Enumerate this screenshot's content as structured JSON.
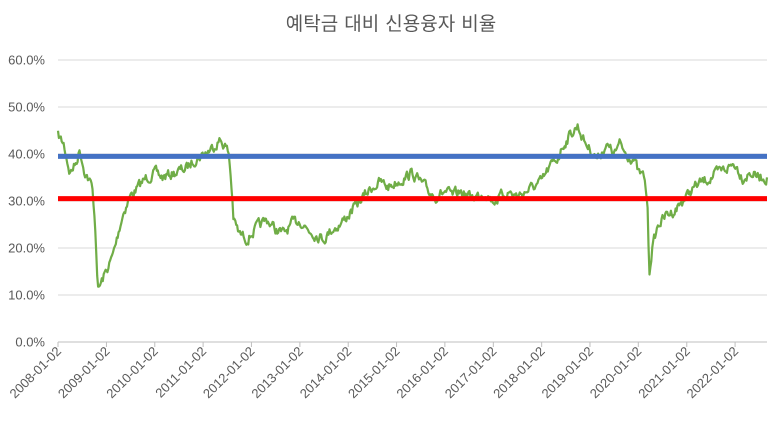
{
  "chart_data": {
    "type": "line",
    "title": "예탁금 대비 신용융자 비율",
    "xlabel": "",
    "ylabel": "",
    "ylim": [
      0,
      0.6
    ],
    "y_ticks": [
      "0.0%",
      "10.0%",
      "20.0%",
      "30.0%",
      "40.0%",
      "50.0%",
      "60.0%"
    ],
    "y_tick_values": [
      0,
      0.1,
      0.2,
      0.3,
      0.4,
      0.5,
      0.6
    ],
    "x_range": [
      "2008-01-02",
      "2022-08-31"
    ],
    "x_ticks": [
      "2008-01-02",
      "2009-01-02",
      "2010-01-02",
      "2011-01-02",
      "2012-01-02",
      "2013-01-02",
      "2014-01-02",
      "2015-01-02",
      "2016-01-02",
      "2017-01-02",
      "2018-01-02",
      "2019-01-02",
      "2020-01-02",
      "2021-01-02",
      "2022-01-02"
    ],
    "grid": true,
    "legend": "none",
    "series": [
      {
        "color": "#70ad47",
        "x": [
          "2008-01-02",
          "2008-02-15",
          "2008-04-01",
          "2008-05-15",
          "2008-06-15",
          "2008-07-15",
          "2008-08-15",
          "2008-09-15",
          "2008-10-01",
          "2008-10-15",
          "2008-10-27",
          "2008-11-15",
          "2008-12-15",
          "2009-01-15",
          "2009-02-15",
          "2009-03-15",
          "2009-04-15",
          "2009-05-15",
          "2009-07-01",
          "2009-09-01",
          "2009-11-01",
          "2010-01-02",
          "2010-03-01",
          "2010-06-01",
          "2010-09-01",
          "2010-11-01",
          "2011-01-02",
          "2011-03-01",
          "2011-05-01",
          "2011-06-15",
          "2011-07-15",
          "2011-08-05",
          "2011-08-20",
          "2011-10-01",
          "2011-12-01",
          "2012-02-01",
          "2012-03-15",
          "2012-05-01",
          "2012-07-01",
          "2012-09-01",
          "2012-11-01",
          "2013-01-02",
          "2013-03-01",
          "2013-05-01",
          "2013-07-01",
          "2013-09-01",
          "2013-11-01",
          "2014-01-02",
          "2014-03-01",
          "2014-05-01",
          "2014-07-01",
          "2014-09-01",
          "2014-11-01",
          "2015-01-02",
          "2015-03-01",
          "2015-05-01",
          "2015-07-01",
          "2015-09-01",
          "2015-11-01",
          "2016-01-02",
          "2016-03-01",
          "2016-05-01",
          "2016-07-01",
          "2016-09-01",
          "2016-11-01",
          "2017-01-02",
          "2017-03-01",
          "2017-05-01",
          "2017-07-01",
          "2017-09-01",
          "2017-11-01",
          "2018-01-02",
          "2018-03-01",
          "2018-05-01",
          "2018-06-15",
          "2018-08-01",
          "2018-10-01",
          "2018-11-15",
          "2019-01-02",
          "2019-03-01",
          "2019-05-01",
          "2019-07-01",
          "2019-08-15",
          "2019-10-01",
          "2019-12-01",
          "2020-01-02",
          "2020-02-15",
          "2020-03-10",
          "2020-03-25",
          "2020-04-15",
          "2020-06-01",
          "2020-08-01",
          "2020-10-01",
          "2020-12-01",
          "2021-01-02",
          "2021-03-01",
          "2021-05-01",
          "2021-07-01",
          "2021-09-01",
          "2021-11-01",
          "2022-01-02",
          "2022-03-01",
          "2022-05-01",
          "2022-07-01",
          "2022-08-31"
        ],
        "y": [
          0.44,
          0.42,
          0.36,
          0.38,
          0.41,
          0.37,
          0.35,
          0.33,
          0.28,
          0.22,
          0.11,
          0.12,
          0.14,
          0.16,
          0.18,
          0.21,
          0.25,
          0.28,
          0.31,
          0.33,
          0.35,
          0.36,
          0.35,
          0.36,
          0.37,
          0.39,
          0.4,
          0.41,
          0.43,
          0.42,
          0.4,
          0.33,
          0.26,
          0.23,
          0.22,
          0.24,
          0.25,
          0.26,
          0.24,
          0.23,
          0.25,
          0.26,
          0.24,
          0.23,
          0.22,
          0.24,
          0.25,
          0.27,
          0.29,
          0.31,
          0.33,
          0.34,
          0.33,
          0.34,
          0.35,
          0.36,
          0.34,
          0.32,
          0.31,
          0.32,
          0.31,
          0.32,
          0.31,
          0.31,
          0.32,
          0.3,
          0.31,
          0.32,
          0.31,
          0.32,
          0.33,
          0.34,
          0.37,
          0.39,
          0.42,
          0.44,
          0.46,
          0.43,
          0.41,
          0.39,
          0.42,
          0.4,
          0.42,
          0.4,
          0.39,
          0.36,
          0.35,
          0.3,
          0.15,
          0.2,
          0.25,
          0.27,
          0.28,
          0.3,
          0.31,
          0.33,
          0.34,
          0.35,
          0.36,
          0.37,
          0.38,
          0.35,
          0.36,
          0.35,
          0.35
        ]
      }
    ],
    "reference_lines": [
      {
        "y": 0.395,
        "color": "#4472c4"
      },
      {
        "y": 0.305,
        "color": "#ff0000"
      }
    ]
  }
}
